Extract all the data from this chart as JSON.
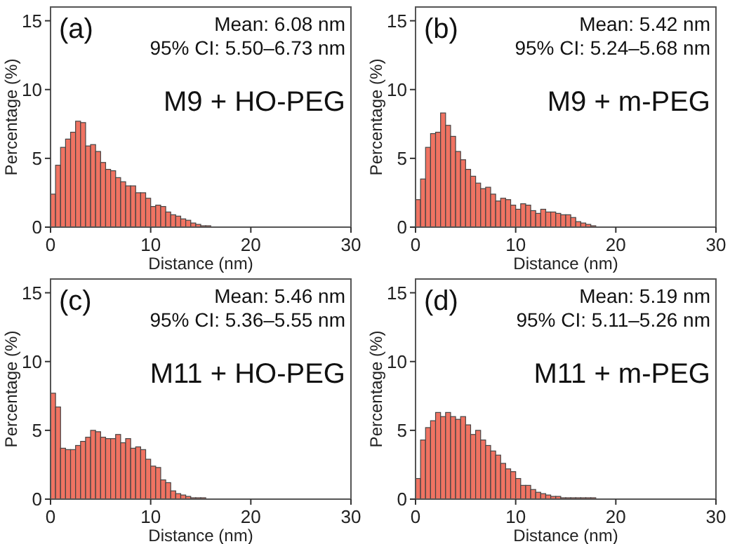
{
  "chart_data": [
    {
      "type": "histogram",
      "xlabel": "Distance (nm)",
      "ylabel": "Percentage (%)",
      "color": "#f07362",
      "xlim": [
        0,
        30
      ],
      "xticks": [
        0,
        10,
        20,
        30
      ],
      "ylim": [
        0,
        16
      ],
      "yticks": [
        0,
        5,
        10,
        15
      ],
      "grid": false,
      "annotations": [
        "(a)",
        "Mean: 6.08 nm",
        "95% CI: 5.50–6.73 nm",
        "M9 + HO-PEG"
      ],
      "bins": [
        0,
        0.5,
        1,
        1.5,
        2,
        2.5,
        3,
        3.5,
        4,
        4.5,
        5,
        5.5,
        6,
        6.5,
        7,
        7.5,
        8,
        8.5,
        9,
        9.5,
        10,
        10.5,
        11,
        11.5,
        12,
        12.5,
        13,
        13.5,
        14,
        14.5,
        15,
        15.5,
        16
      ],
      "values": [
        2.4,
        4.5,
        5.8,
        6.4,
        6.9,
        7.7,
        7.6,
        5.9,
        6.0,
        5.5,
        4.7,
        4.2,
        4.1,
        3.6,
        3.3,
        3.0,
        3.0,
        2.5,
        2.5,
        2.1,
        1.5,
        1.6,
        1.5,
        1.1,
        0.9,
        0.8,
        0.6,
        0.5,
        0.3,
        0.2,
        0.1,
        0.1
      ]
    },
    {
      "type": "histogram",
      "xlabel": "Distance (nm)",
      "ylabel": "Percentage (%)",
      "color": "#f07362",
      "xlim": [
        0,
        30
      ],
      "xticks": [
        0,
        10,
        20,
        30
      ],
      "ylim": [
        0,
        16
      ],
      "yticks": [
        0,
        5,
        10,
        15
      ],
      "grid": false,
      "annotations": [
        "(b)",
        "Mean: 5.42 nm",
        "95% CI: 5.24–5.68 nm",
        "M9 + m-PEG"
      ],
      "bins": [
        0,
        0.5,
        1,
        1.5,
        2,
        2.5,
        3,
        3.5,
        4,
        4.5,
        5,
        5.5,
        6,
        6.5,
        7,
        7.5,
        8,
        8.5,
        9,
        9.5,
        10,
        10.5,
        11,
        11.5,
        12,
        12.5,
        13,
        13.5,
        14,
        14.5,
        15,
        15.5,
        16,
        16.5,
        17,
        17.5,
        18
      ],
      "values": [
        2.0,
        3.5,
        5.8,
        6.8,
        6.9,
        8.3,
        7.4,
        6.6,
        5.5,
        4.9,
        4.2,
        3.7,
        3.2,
        2.8,
        2.9,
        2.4,
        1.9,
        2.1,
        2.0,
        1.6,
        1.3,
        1.7,
        1.6,
        1.2,
        1.0,
        1.3,
        1.1,
        1.1,
        1.0,
        0.9,
        0.9,
        0.7,
        0.4,
        0.3,
        0.2,
        0.1
      ]
    },
    {
      "type": "histogram",
      "xlabel": "Distance (nm)",
      "ylabel": "Percentage (%)",
      "color": "#f07362",
      "xlim": [
        0,
        30
      ],
      "xticks": [
        0,
        10,
        20,
        30
      ],
      "ylim": [
        0,
        16
      ],
      "yticks": [
        0,
        5,
        10,
        15
      ],
      "grid": false,
      "annotations": [
        "(c)",
        "Mean: 5.46 nm",
        "95% CI: 5.36–5.55 nm",
        "M11 + HO-PEG"
      ],
      "bins": [
        0,
        0.5,
        1,
        1.5,
        2,
        2.5,
        3,
        3.5,
        4,
        4.5,
        5,
        5.5,
        6,
        6.5,
        7,
        7.5,
        8,
        8.5,
        9,
        9.5,
        10,
        10.5,
        11,
        11.5,
        12,
        12.5,
        13,
        13.5,
        14,
        14.5,
        15,
        15.5
      ],
      "values": [
        7.7,
        6.7,
        3.7,
        3.6,
        3.6,
        3.9,
        4.2,
        4.5,
        5.0,
        4.9,
        4.5,
        4.4,
        4.4,
        4.7,
        4.1,
        4.4,
        3.7,
        3.8,
        3.6,
        2.9,
        2.4,
        2.3,
        1.4,
        1.2,
        0.6,
        0.4,
        0.3,
        0.2,
        0.1,
        0.1,
        0.1
      ]
    },
    {
      "type": "histogram",
      "xlabel": "Distance (nm)",
      "ylabel": "Percentage (%)",
      "color": "#f07362",
      "xlim": [
        0,
        30
      ],
      "xticks": [
        0,
        10,
        20,
        30
      ],
      "ylim": [
        0,
        16
      ],
      "yticks": [
        0,
        5,
        10,
        15
      ],
      "grid": false,
      "annotations": [
        "(d)",
        "Mean: 5.19 nm",
        "95% CI: 5.11–5.26 nm",
        "M11 + m-PEG"
      ],
      "bins": [
        0,
        0.5,
        1,
        1.5,
        2,
        2.5,
        3,
        3.5,
        4,
        4.5,
        5,
        5.5,
        6,
        6.5,
        7,
        7.5,
        8,
        8.5,
        9,
        9.5,
        10,
        10.5,
        11,
        11.5,
        12,
        12.5,
        13,
        13.5,
        14,
        14.5,
        15,
        15.5,
        16,
        16.5,
        17,
        17.5,
        18
      ],
      "values": [
        1.5,
        4.3,
        5.2,
        5.7,
        6.3,
        6.0,
        6.3,
        6.0,
        5.8,
        6.0,
        5.4,
        4.7,
        5.0,
        4.3,
        3.9,
        3.5,
        3.2,
        2.6,
        2.2,
        2.0,
        1.5,
        1.0,
        1.0,
        0.7,
        0.5,
        0.4,
        0.3,
        0.2,
        0.2,
        0.1,
        0.1,
        0.1,
        0.1,
        0.1,
        0.1,
        0.1
      ]
    }
  ]
}
